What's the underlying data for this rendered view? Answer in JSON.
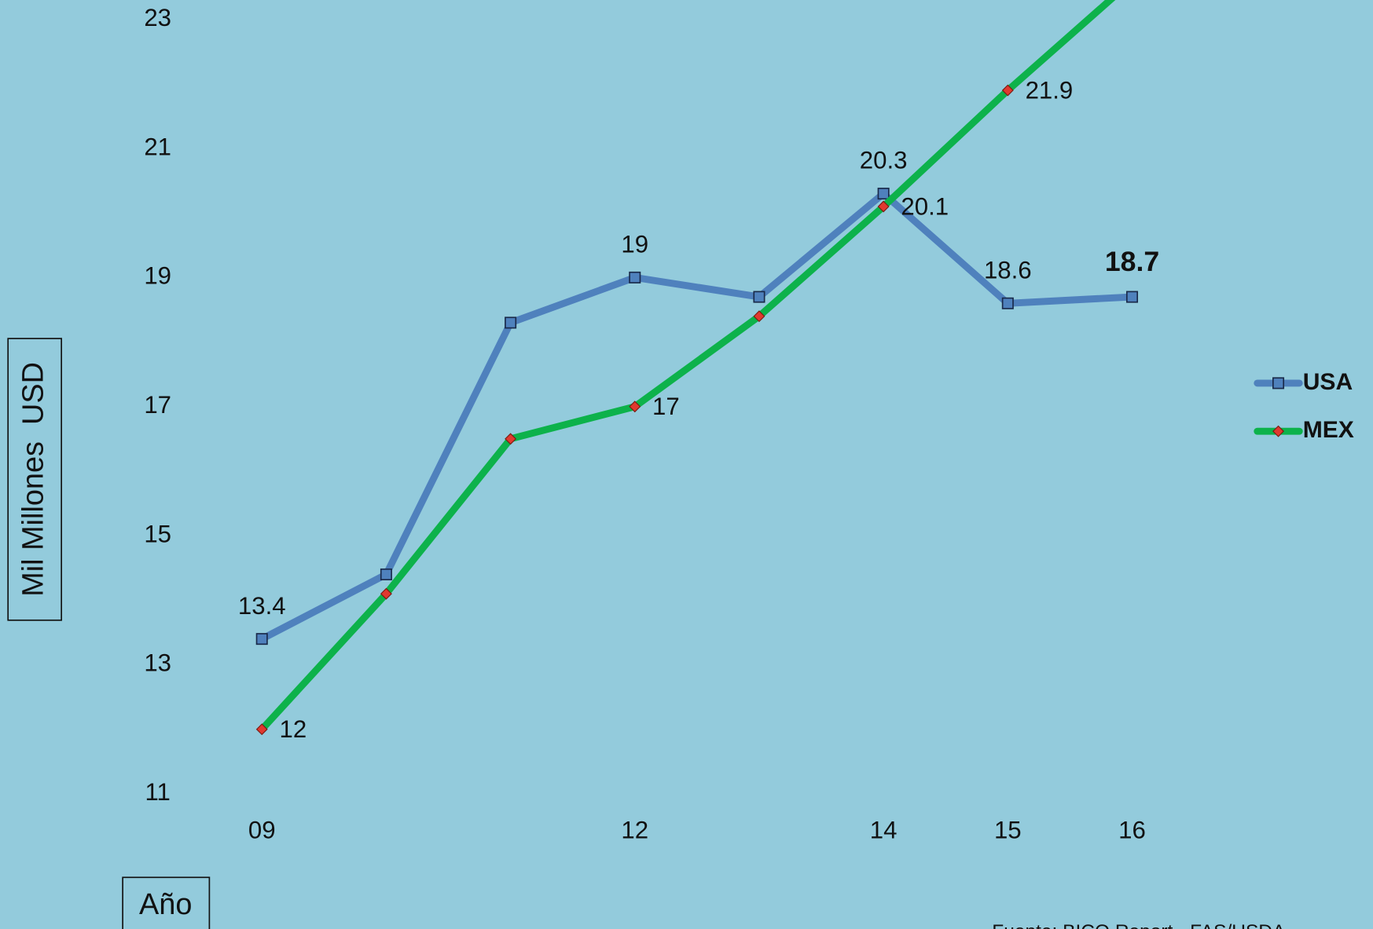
{
  "chart_data": {
    "type": "line",
    "x_label": "Año",
    "y_label": "Mil Millones  USD",
    "source": "Fuente: BICO Report - FAS/USDA",
    "categories": [
      "09",
      null,
      null,
      "12",
      null,
      "14",
      "15",
      "16"
    ],
    "series": [
      {
        "name": "USA",
        "color": "#4f81bd",
        "marker": "square",
        "marker_color": "#4f81bd",
        "values": [
          13.4,
          14.4,
          18.3,
          19,
          18.7,
          20.3,
          18.6,
          18.7
        ],
        "value_labels": [
          "13.4",
          null,
          null,
          "19",
          null,
          "20.3",
          "18.6",
          "18.7"
        ]
      },
      {
        "name": "MEX",
        "color": "#0db24b",
        "marker": "diamond",
        "marker_color": "#e0392f",
        "values": [
          12,
          14.1,
          16.5,
          17,
          18.4,
          20.1,
          21.9,
          23.6
        ],
        "value_labels": [
          "12",
          null,
          null,
          "17",
          null,
          "20.1",
          "21.9",
          null
        ]
      }
    ],
    "ylim": [
      10.6,
      23.3
    ],
    "yticks": [
      11,
      13,
      15,
      17,
      19,
      21,
      23
    ],
    "grid": false,
    "legend": "right"
  }
}
